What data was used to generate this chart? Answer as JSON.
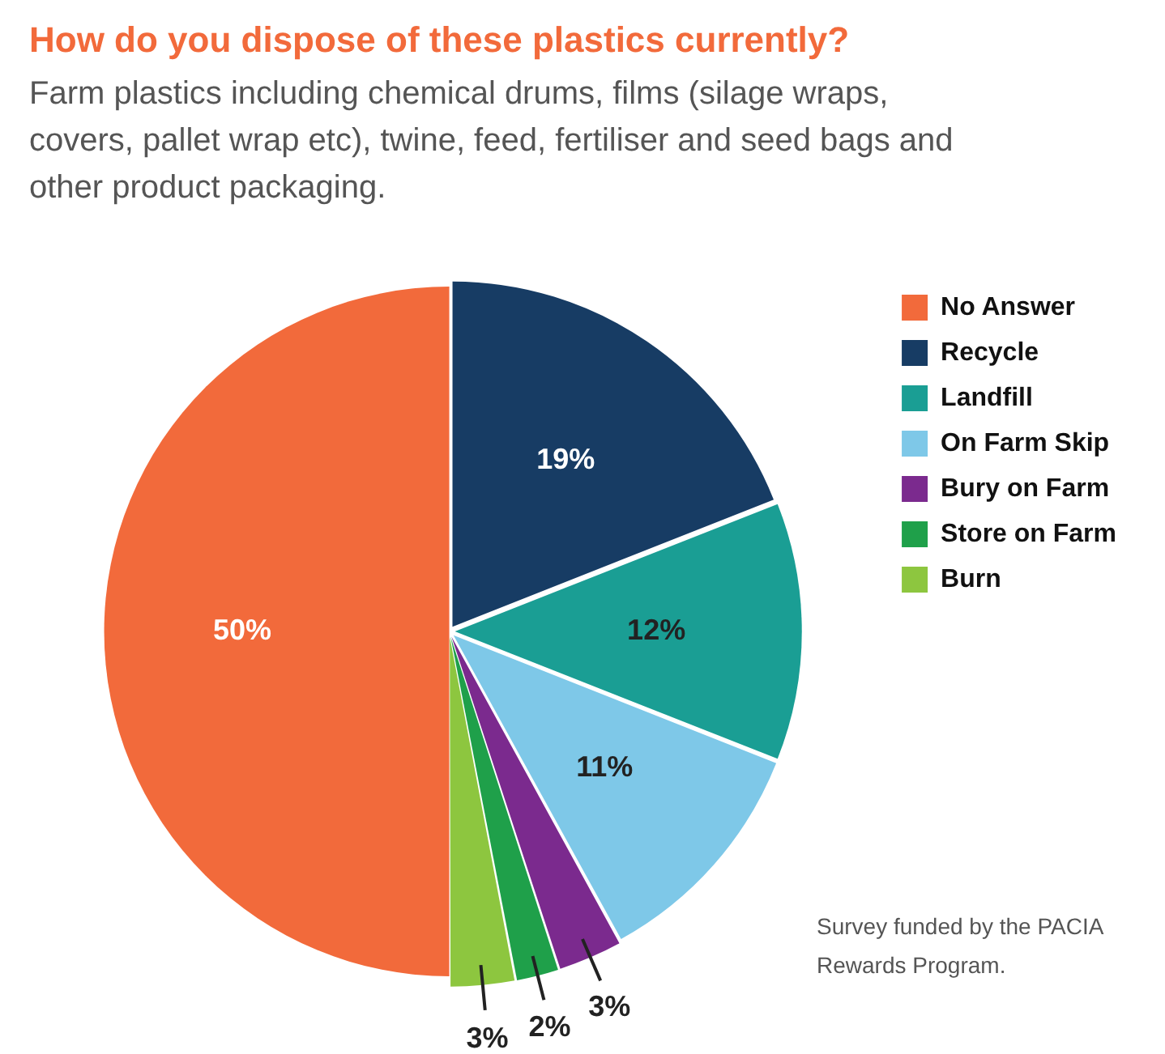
{
  "chart_data": {
    "type": "pie",
    "title": "How do you dispose of these plastics currently?",
    "subtitle": "Farm plastics including chemical drums, films (silage wraps, covers, pallet wrap etc), twine, feed, fertiliser and seed bags and other product packaging.",
    "categories": [
      "No Answer",
      "Recycle",
      "Landfill",
      "On Farm Skip",
      "Bury on Farm",
      "Store on Farm",
      "Burn"
    ],
    "values": [
      50,
      19,
      12,
      11,
      3,
      2,
      3
    ],
    "colors": [
      "#f26a3b",
      "#173c64",
      "#1a9e94",
      "#7ec8e8",
      "#7b2a8e",
      "#1fa04a",
      "#8dc63f"
    ],
    "value_labels": [
      "50%",
      "19%",
      "12%",
      "11%",
      "3%",
      "2%",
      "3%"
    ],
    "legend": "right",
    "annotations": [
      "Survey funded by the PACIA Rewards Program."
    ]
  }
}
